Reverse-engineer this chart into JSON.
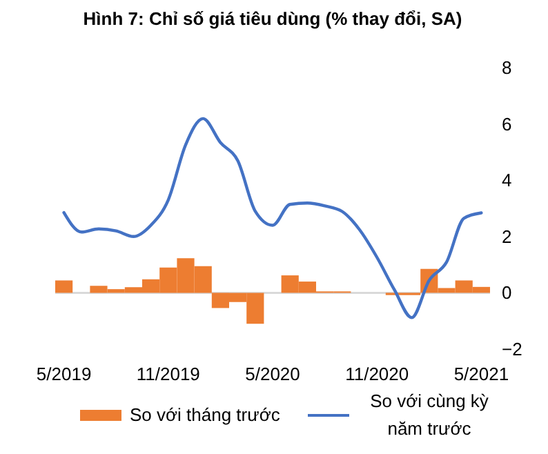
{
  "chart_data": {
    "type": "bar",
    "title": "Hình 7: Chỉ số giá tiêu dùng (% thay đổi, SA)",
    "categories": [
      "5/2019",
      null,
      null,
      null,
      null,
      null,
      "11/2019",
      null,
      null,
      null,
      null,
      null,
      "5/2020",
      null,
      null,
      null,
      null,
      null,
      "11/2020",
      null,
      null,
      null,
      null,
      null,
      "5/2021"
    ],
    "series": [
      {
        "name": "So với tháng trước",
        "color": "#ed7d31",
        "values": [
          0.44,
          0,
          0.25,
          0.13,
          0.2,
          0.48,
          0.9,
          1.23,
          0.95,
          -0.54,
          -0.33,
          -1.1,
          0,
          0.62,
          0.4,
          0.05,
          0.05,
          0,
          0,
          -0.08,
          -0.08,
          0.85,
          0.17,
          0.44,
          0.21
        ]
      },
      {
        "name": "So với cùng kỳ năm trước",
        "type": "line",
        "color": "#4472c4",
        "values": [
          2.85,
          2.16,
          2.27,
          2.2,
          2.0,
          2.4,
          3.3,
          5.26,
          6.19,
          5.34,
          4.69,
          2.9,
          2.4,
          3.14,
          3.19,
          3.09,
          2.89,
          2.24,
          1.26,
          0.11,
          -0.88,
          0.44,
          1.09,
          2.65,
          2.84
        ]
      }
    ],
    "ylim": [
      -2,
      8
    ],
    "yticks": [
      -2,
      0,
      2,
      4,
      6,
      8
    ],
    "ref_lines": [
      {
        "axis": "y",
        "value": 0,
        "color": "#d9d9d9"
      }
    ],
    "legend": "bottom",
    "grid": false
  }
}
